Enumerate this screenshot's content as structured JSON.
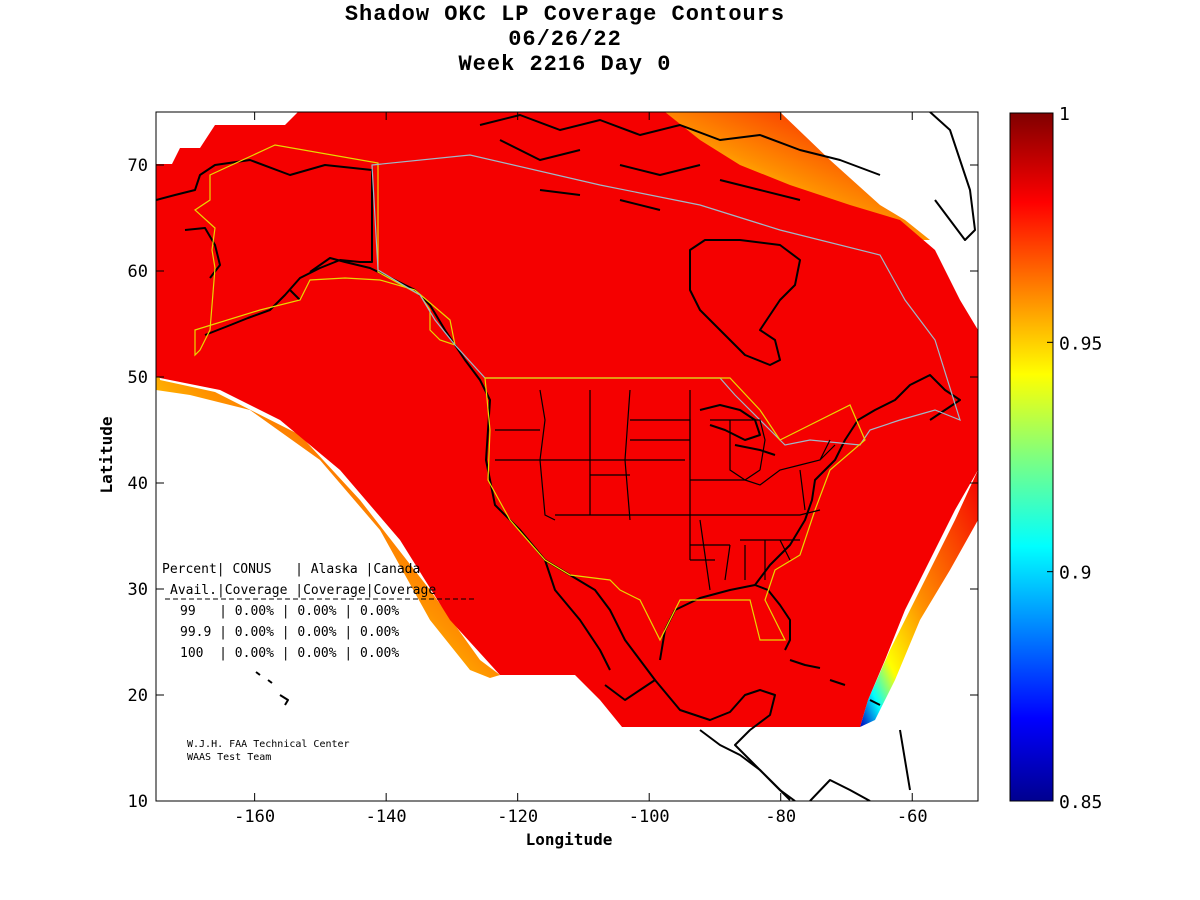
{
  "title": {
    "line1": "Shadow OKC LP Coverage Contours",
    "line2": "06/26/22",
    "line3": "Week 2216 Day 0"
  },
  "axes": {
    "xlabel": "Longitude",
    "ylabel": "Latitude",
    "x_ticks": [
      "-160",
      "-140",
      "-120",
      "-100",
      "-80",
      "-60"
    ],
    "y_ticks": [
      "10",
      "20",
      "30",
      "40",
      "50",
      "60",
      "70"
    ],
    "xlim": [
      -175,
      -50
    ],
    "ylim": [
      10,
      75
    ]
  },
  "colorbar": {
    "ticks": [
      "1",
      "0.95",
      "0.9",
      "0.85"
    ],
    "range": [
      0.85,
      1.0
    ],
    "colormap": "jet"
  },
  "table": {
    "header1": [
      "Percent",
      "CONUS",
      "Alaska",
      "Canada"
    ],
    "header2": [
      "Avail.",
      "Coverage",
      "Coverage",
      "Coverage"
    ],
    "rows": [
      [
        "99",
        "0.00%",
        "0.00%",
        "0.00%"
      ],
      [
        "99.9",
        "0.00%",
        "0.00%",
        "0.00%"
      ],
      [
        "100",
        "0.00%",
        "0.00%",
        "0.00%"
      ]
    ]
  },
  "credits": {
    "line1": "W.J.H. FAA Technical Center",
    "line2": "WAAS Test Team"
  },
  "colors": {
    "coverage_fill": "#f50000",
    "coastline": "#000000",
    "region_outline_conus": "#e8d800",
    "region_outline_canada": "#9fb8c8",
    "background": "#ffffff"
  }
}
